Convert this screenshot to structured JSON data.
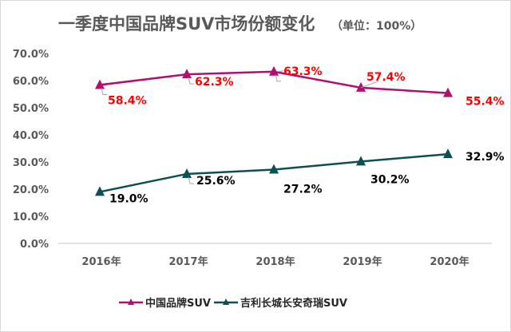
{
  "chart_data": {
    "type": "line",
    "title": "一季度中国品牌SUV市场份额变化",
    "subtitle": "（单位：100%）",
    "categories": [
      "2016年",
      "2017年",
      "2018年",
      "2019年",
      "2020年"
    ],
    "ylim": [
      0,
      70
    ],
    "yticks": [
      "0.0%",
      "10.0%",
      "20.0%",
      "30.0%",
      "40.0%",
      "50.0%",
      "60.0%",
      "70.0%"
    ],
    "grid": false,
    "legend": "bottom",
    "series": [
      {
        "name": "中国品牌SUV",
        "values": [
          58.4,
          62.3,
          63.3,
          57.4,
          55.4
        ],
        "labels": [
          "58.4%",
          "62.3%",
          "63.3%",
          "57.4%",
          "55.4%"
        ],
        "color": "#b0106e",
        "label_color": "#ff0000",
        "marker": "triangle"
      },
      {
        "name": "吉利长城长安奇瑞SUV",
        "values": [
          19.0,
          25.6,
          27.2,
          30.2,
          32.9
        ],
        "labels": [
          "19.0%",
          "25.6%",
          "27.2%",
          "30.2%",
          "32.9%"
        ],
        "color": "#0d4f52",
        "label_color": "#000000",
        "marker": "triangle"
      }
    ]
  }
}
